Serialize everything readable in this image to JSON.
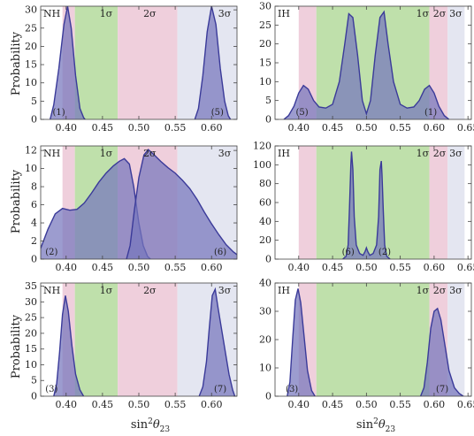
{
  "colors": {
    "band1": "#bfe0ab",
    "band2": "#efcfdc",
    "band3": "#e4e6f1",
    "fill": "#7676bc",
    "stroke": "#3a3a99"
  },
  "shared": {
    "ylabel": "Probability",
    "xlabel_base": "sin",
    "xlabel_sup": "2",
    "xlabel_theta": "θ",
    "xlabel_sub": "23"
  },
  "chart_data": [
    {
      "type": "area",
      "id": "p1",
      "hierarchy": "NH",
      "xlim": [
        0.365,
        0.635
      ],
      "ylim": [
        0,
        31
      ],
      "xticks": [
        "0.40",
        "0.45",
        "0.50",
        "0.55",
        "0.60"
      ],
      "yticks": [
        "0",
        "5",
        "10",
        "15",
        "20",
        "25",
        "30"
      ],
      "bands": [
        {
          "x0": 0.395,
          "x1": 0.412,
          "level": 2
        },
        {
          "x0": 0.412,
          "x1": 0.471,
          "level": 1
        },
        {
          "x0": 0.471,
          "x1": 0.553,
          "level": 2
        },
        {
          "x0": 0.553,
          "x1": 0.635,
          "level": 3
        }
      ],
      "sigma_labels": [
        {
          "text": "1σ",
          "x": 0.455
        },
        {
          "text": "2σ",
          "x": 0.515
        },
        {
          "text": "3σ",
          "x": 0.618
        }
      ],
      "curves": [
        {
          "label": "(1)",
          "points": [
            [
              0.378,
              0
            ],
            [
              0.383,
              4
            ],
            [
              0.39,
              14
            ],
            [
              0.397,
              26
            ],
            [
              0.402,
              31
            ],
            [
              0.407,
              25
            ],
            [
              0.413,
              12
            ],
            [
              0.419,
              3
            ],
            [
              0.424,
              0.5
            ],
            [
              0.426,
              0
            ]
          ]
        },
        {
          "label": "(5)",
          "points": [
            [
              0.577,
              0
            ],
            [
              0.582,
              3
            ],
            [
              0.588,
              12
            ],
            [
              0.594,
              24
            ],
            [
              0.6,
              31
            ],
            [
              0.606,
              26
            ],
            [
              0.612,
              14
            ],
            [
              0.618,
              5
            ],
            [
              0.623,
              1
            ],
            [
              0.626,
              0
            ]
          ]
        }
      ],
      "curve_labels": [
        {
          "text": "(1)",
          "x": 0.39
        },
        {
          "text": "(5)",
          "x": 0.608
        }
      ]
    },
    {
      "type": "area",
      "id": "p2",
      "hierarchy": "IH",
      "xlim": [
        0.365,
        0.655
      ],
      "ylim": [
        0,
        30
      ],
      "xticks": [
        "0.40",
        "0.45",
        "0.50",
        "0.55",
        "0.60",
        "0.65"
      ],
      "yticks": [
        "0",
        "5",
        "10",
        "15",
        "20",
        "25",
        "30"
      ],
      "bands": [
        {
          "x0": 0.4,
          "x1": 0.426,
          "level": 2
        },
        {
          "x0": 0.426,
          "x1": 0.593,
          "level": 1
        },
        {
          "x0": 0.593,
          "x1": 0.62,
          "level": 2
        },
        {
          "x0": 0.62,
          "x1": 0.645,
          "level": 3
        }
      ],
      "sigma_labels": [
        {
          "text": "1σ",
          "x": 0.583
        },
        {
          "text": "2σ",
          "x": 0.608
        },
        {
          "text": "3σ",
          "x": 0.632
        }
      ],
      "curves": [
        {
          "label": "(5)/(1)",
          "points": [
            [
              0.378,
              0
            ],
            [
              0.385,
              1
            ],
            [
              0.393,
              3.5
            ],
            [
              0.4,
              7
            ],
            [
              0.407,
              9
            ],
            [
              0.414,
              8
            ],
            [
              0.422,
              5
            ],
            [
              0.43,
              3.3
            ],
            [
              0.44,
              3
            ],
            [
              0.45,
              4
            ],
            [
              0.46,
              10
            ],
            [
              0.468,
              20
            ],
            [
              0.474,
              28
            ],
            [
              0.48,
              27
            ],
            [
              0.487,
              17
            ],
            [
              0.494,
              5
            ],
            [
              0.5,
              1.5
            ],
            [
              0.506,
              5
            ],
            [
              0.513,
              17
            ],
            [
              0.52,
              27
            ],
            [
              0.526,
              28.5
            ],
            [
              0.532,
              20
            ],
            [
              0.54,
              10
            ],
            [
              0.55,
              4
            ],
            [
              0.56,
              3
            ],
            [
              0.57,
              3.3
            ],
            [
              0.578,
              5
            ],
            [
              0.586,
              8
            ],
            [
              0.593,
              9
            ],
            [
              0.6,
              7
            ],
            [
              0.607,
              3.5
            ],
            [
              0.615,
              1
            ],
            [
              0.622,
              0
            ]
          ]
        }
      ],
      "curve_labels": [
        {
          "text": "(5)",
          "x": 0.405
        },
        {
          "text": "(1)",
          "x": 0.595
        }
      ]
    },
    {
      "type": "area",
      "id": "p3",
      "hierarchy": "NH",
      "xlim": [
        0.365,
        0.635
      ],
      "ylim": [
        0,
        12.5
      ],
      "xticks": [
        "0.40",
        "0.45",
        "0.50",
        "0.55",
        "0.60"
      ],
      "yticks": [
        "0",
        "2",
        "4",
        "6",
        "8",
        "10",
        "12"
      ],
      "bands": [
        {
          "x0": 0.395,
          "x1": 0.412,
          "level": 2
        },
        {
          "x0": 0.412,
          "x1": 0.471,
          "level": 1
        },
        {
          "x0": 0.471,
          "x1": 0.553,
          "level": 2
        },
        {
          "x0": 0.553,
          "x1": 0.635,
          "level": 3
        }
      ],
      "sigma_labels": [
        {
          "text": "1σ",
          "x": 0.455
        },
        {
          "text": "2σ",
          "x": 0.515
        },
        {
          "text": "3σ",
          "x": 0.618
        }
      ],
      "curves": [
        {
          "label": "(2)",
          "points": [
            [
              0.365,
              1.2
            ],
            [
              0.375,
              3.3
            ],
            [
              0.385,
              5
            ],
            [
              0.395,
              5.6
            ],
            [
              0.405,
              5.4
            ],
            [
              0.415,
              5.5
            ],
            [
              0.425,
              6.2
            ],
            [
              0.435,
              7.3
            ],
            [
              0.445,
              8.5
            ],
            [
              0.455,
              9.5
            ],
            [
              0.465,
              10.3
            ],
            [
              0.473,
              10.8
            ],
            [
              0.48,
              11.1
            ],
            [
              0.487,
              10.5
            ],
            [
              0.493,
              8
            ],
            [
              0.5,
              4
            ],
            [
              0.506,
              1.5
            ],
            [
              0.512,
              0.3
            ],
            [
              0.516,
              0
            ]
          ]
        },
        {
          "label": "(6)",
          "points": [
            [
              0.483,
              0
            ],
            [
              0.488,
              1.5
            ],
            [
              0.494,
              5.5
            ],
            [
              0.5,
              9
            ],
            [
              0.507,
              11.5
            ],
            [
              0.513,
              12.1
            ],
            [
              0.52,
              11.6
            ],
            [
              0.53,
              10.8
            ],
            [
              0.54,
              10.1
            ],
            [
              0.55,
              9.5
            ],
            [
              0.56,
              8.7
            ],
            [
              0.57,
              7.8
            ],
            [
              0.58,
              6.6
            ],
            [
              0.59,
              5.2
            ],
            [
              0.6,
              3.9
            ],
            [
              0.61,
              2.7
            ],
            [
              0.62,
              1.6
            ],
            [
              0.63,
              0.8
            ],
            [
              0.635,
              0.5
            ]
          ]
        }
      ],
      "curve_labels": [
        {
          "text": "(2)",
          "x": 0.38
        },
        {
          "text": "(6)",
          "x": 0.612
        }
      ]
    },
    {
      "type": "area",
      "id": "p4",
      "hierarchy": "IH",
      "xlim": [
        0.365,
        0.655
      ],
      "ylim": [
        0,
        120
      ],
      "xticks": [
        "0.40",
        "0.45",
        "0.50",
        "0.55",
        "0.60",
        "0.65"
      ],
      "yticks": [
        "0",
        "20",
        "40",
        "60",
        "80",
        "100",
        "120"
      ],
      "bands": [
        {
          "x0": 0.4,
          "x1": 0.426,
          "level": 2
        },
        {
          "x0": 0.426,
          "x1": 0.593,
          "level": 1
        },
        {
          "x0": 0.593,
          "x1": 0.62,
          "level": 2
        },
        {
          "x0": 0.62,
          "x1": 0.645,
          "level": 3
        }
      ],
      "sigma_labels": [
        {
          "text": "1σ",
          "x": 0.583
        },
        {
          "text": "2σ",
          "x": 0.608
        },
        {
          "text": "3σ",
          "x": 0.632
        }
      ],
      "curves": [
        {
          "label": "(6)/(2)",
          "points": [
            [
              0.465,
              0
            ],
            [
              0.47,
              3
            ],
            [
              0.473,
              15
            ],
            [
              0.475,
              55
            ],
            [
              0.477,
              100
            ],
            [
              0.478,
              114
            ],
            [
              0.48,
              95
            ],
            [
              0.482,
              45
            ],
            [
              0.485,
              15
            ],
            [
              0.49,
              6
            ],
            [
              0.495,
              4
            ],
            [
              0.498,
              8
            ],
            [
              0.5,
              12
            ],
            [
              0.502,
              8
            ],
            [
              0.505,
              4
            ],
            [
              0.51,
              6
            ],
            [
              0.515,
              15
            ],
            [
              0.518,
              45
            ],
            [
              0.52,
              95
            ],
            [
              0.522,
              104
            ],
            [
              0.523,
              90
            ],
            [
              0.525,
              50
            ],
            [
              0.527,
              15
            ],
            [
              0.53,
              3
            ],
            [
              0.535,
              0
            ]
          ]
        }
      ],
      "curve_labels": [
        {
          "text": "(6)",
          "x": 0.473
        },
        {
          "text": "(2)",
          "x": 0.527
        }
      ]
    },
    {
      "type": "area",
      "id": "p5",
      "hierarchy": "NH",
      "xlim": [
        0.365,
        0.635
      ],
      "ylim": [
        0,
        36
      ],
      "xticks": [
        "0.40",
        "0.45",
        "0.50",
        "0.55",
        "0.60"
      ],
      "yticks": [
        "0",
        "5",
        "10",
        "15",
        "20",
        "25",
        "30",
        "35"
      ],
      "bands": [
        {
          "x0": 0.395,
          "x1": 0.412,
          "level": 2
        },
        {
          "x0": 0.412,
          "x1": 0.471,
          "level": 1
        },
        {
          "x0": 0.471,
          "x1": 0.553,
          "level": 2
        },
        {
          "x0": 0.553,
          "x1": 0.635,
          "level": 3
        }
      ],
      "sigma_labels": [
        {
          "text": "1σ",
          "x": 0.455
        },
        {
          "text": "2σ",
          "x": 0.515
        },
        {
          "text": "3σ",
          "x": 0.618
        }
      ],
      "curves": [
        {
          "label": "(3)",
          "points": [
            [
              0.383,
              0
            ],
            [
              0.387,
              4
            ],
            [
              0.391,
              14
            ],
            [
              0.395,
              26
            ],
            [
              0.399,
              32
            ],
            [
              0.403,
              27
            ],
            [
              0.408,
              16
            ],
            [
              0.413,
              7
            ],
            [
              0.419,
              2
            ],
            [
              0.424,
              0
            ]
          ]
        },
        {
          "label": "(7)",
          "points": [
            [
              0.583,
              0
            ],
            [
              0.588,
              3
            ],
            [
              0.593,
              11
            ],
            [
              0.597,
              22
            ],
            [
              0.601,
              32
            ],
            [
              0.605,
              34
            ],
            [
              0.609,
              28
            ],
            [
              0.614,
              21
            ],
            [
              0.619,
              14
            ],
            [
              0.624,
              7
            ],
            [
              0.629,
              2
            ],
            [
              0.632,
              0
            ]
          ]
        }
      ],
      "curve_labels": [
        {
          "text": "(3)",
          "x": 0.38
        },
        {
          "text": "(7)",
          "x": 0.612
        }
      ]
    },
    {
      "type": "area",
      "id": "p6",
      "hierarchy": "IH",
      "xlim": [
        0.365,
        0.655
      ],
      "ylim": [
        0,
        40
      ],
      "xticks": [
        "0.40",
        "0.45",
        "0.50",
        "0.55",
        "0.60",
        "0.65"
      ],
      "yticks": [
        "0",
        "10",
        "20",
        "30",
        "40"
      ],
      "bands": [
        {
          "x0": 0.4,
          "x1": 0.426,
          "level": 2
        },
        {
          "x0": 0.426,
          "x1": 0.593,
          "level": 1
        },
        {
          "x0": 0.593,
          "x1": 0.62,
          "level": 2
        },
        {
          "x0": 0.62,
          "x1": 0.645,
          "level": 3
        }
      ],
      "sigma_labels": [
        {
          "text": "1σ",
          "x": 0.583
        },
        {
          "text": "2σ",
          "x": 0.608
        },
        {
          "text": "3σ",
          "x": 0.632
        }
      ],
      "curves": [
        {
          "label": "(3)",
          "points": [
            [
              0.383,
              0
            ],
            [
              0.387,
              5
            ],
            [
              0.391,
              20
            ],
            [
              0.395,
              34
            ],
            [
              0.399,
              38
            ],
            [
              0.403,
              33
            ],
            [
              0.408,
              21
            ],
            [
              0.413,
              9
            ],
            [
              0.419,
              2
            ],
            [
              0.424,
              0
            ]
          ]
        },
        {
          "label": "(7)",
          "points": [
            [
              0.58,
              0
            ],
            [
              0.585,
              3
            ],
            [
              0.59,
              12
            ],
            [
              0.595,
              24
            ],
            [
              0.6,
              30
            ],
            [
              0.605,
              31
            ],
            [
              0.61,
              27
            ],
            [
              0.616,
              18
            ],
            [
              0.622,
              9
            ],
            [
              0.63,
              3
            ],
            [
              0.637,
              1
            ],
            [
              0.643,
              0
            ]
          ]
        }
      ],
      "curve_labels": [
        {
          "text": "(3)",
          "x": 0.39
        },
        {
          "text": "(7)",
          "x": 0.612
        }
      ]
    }
  ]
}
